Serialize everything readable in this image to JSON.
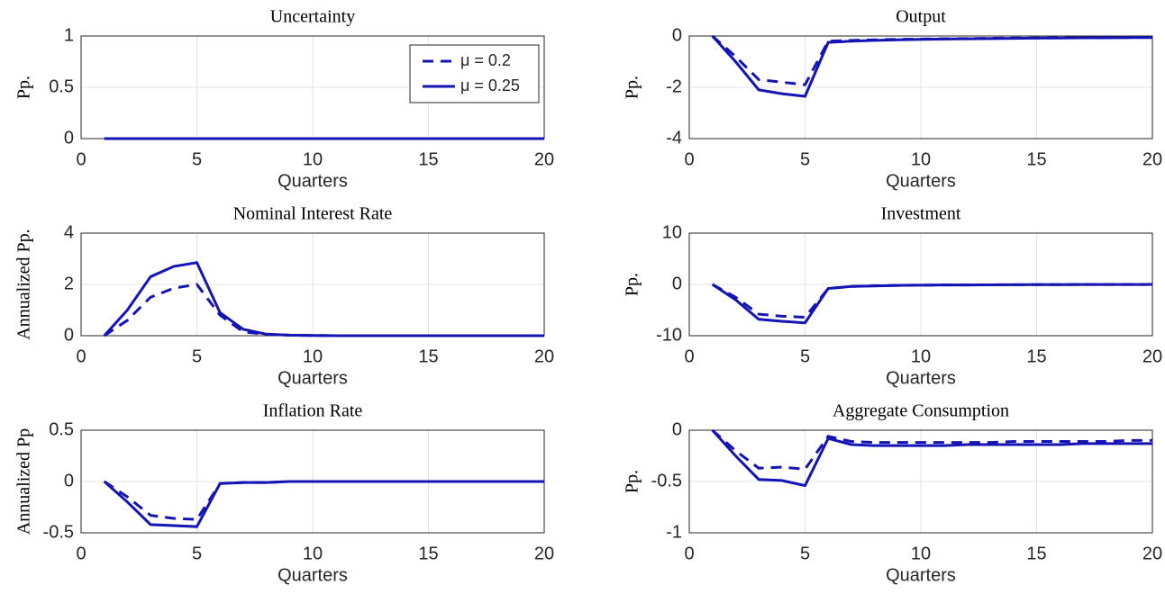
{
  "chart_data": [
    {
      "type": "line",
      "title": "Uncertainty",
      "xlabel": "Quarters",
      "ylabel": "Pp.",
      "x": [
        1,
        2,
        3,
        4,
        5,
        6,
        7,
        8,
        9,
        10,
        11,
        12,
        13,
        14,
        15,
        16,
        17,
        18,
        19,
        20
      ],
      "series": [
        {
          "name": "μ = 0.2",
          "color": "#1414b4",
          "line_style": "dashed",
          "values": [
            0,
            0,
            0,
            0,
            0,
            0,
            0,
            0,
            0,
            0,
            0,
            0,
            0,
            0,
            0,
            0,
            0,
            0,
            0,
            0
          ]
        },
        {
          "name": "μ = 0.25",
          "color": "#1414b4",
          "line_style": "solid",
          "values": [
            0,
            0,
            0,
            0,
            0,
            0,
            0,
            0,
            0,
            0,
            0,
            0,
            0,
            0,
            0,
            0,
            0,
            0,
            0,
            0
          ]
        }
      ],
      "xlim": [
        0,
        20
      ],
      "xticks": [
        0,
        5,
        10,
        15,
        20
      ],
      "ylim": [
        0,
        1
      ],
      "yticks": [
        0,
        0.5,
        1
      ],
      "grid": true,
      "legend": "northeast"
    },
    {
      "type": "line",
      "title": "Output",
      "xlabel": "Quarters",
      "ylabel": "Pp.",
      "x": [
        1,
        2,
        3,
        4,
        5,
        6,
        7,
        8,
        9,
        10,
        11,
        12,
        13,
        14,
        15,
        16,
        17,
        18,
        19,
        20
      ],
      "series": [
        {
          "color": "#1414b4",
          "line_style": "dashed",
          "values": [
            0,
            -0.8,
            -1.7,
            -1.8,
            -1.9,
            -0.2,
            -0.17,
            -0.15,
            -0.13,
            -0.12,
            -0.11,
            -0.1,
            -0.09,
            -0.08,
            -0.08,
            -0.07,
            -0.07,
            -0.06,
            -0.06,
            -0.05
          ]
        },
        {
          "color": "#1414b4",
          "line_style": "solid",
          "values": [
            0,
            -1.0,
            -2.1,
            -2.25,
            -2.35,
            -0.25,
            -0.2,
            -0.17,
            -0.15,
            -0.13,
            -0.12,
            -0.11,
            -0.1,
            -0.09,
            -0.08,
            -0.08,
            -0.07,
            -0.07,
            -0.06,
            -0.06
          ]
        }
      ],
      "xlim": [
        0,
        20
      ],
      "xticks": [
        0,
        5,
        10,
        15,
        20
      ],
      "ylim": [
        -4,
        0
      ],
      "yticks": [
        -4,
        -2,
        0
      ],
      "grid": true
    },
    {
      "type": "line",
      "title": "Nominal Interest Rate",
      "xlabel": "Quarters",
      "ylabel": "Annualized Pp.",
      "x": [
        1,
        2,
        3,
        4,
        5,
        6,
        7,
        8,
        9,
        10,
        11,
        12,
        13,
        14,
        15,
        16,
        17,
        18,
        19,
        20
      ],
      "series": [
        {
          "color": "#1414b4",
          "line_style": "dashed",
          "values": [
            0,
            0.6,
            1.5,
            1.85,
            2.0,
            0.8,
            0.15,
            0.05,
            0.02,
            0.01,
            0,
            0,
            0,
            0,
            0,
            0,
            0,
            0,
            0,
            0
          ]
        },
        {
          "color": "#1414b4",
          "line_style": "solid",
          "values": [
            0,
            1.0,
            2.3,
            2.7,
            2.85,
            0.9,
            0.25,
            0.06,
            0.02,
            0.01,
            0,
            0,
            0,
            0,
            0,
            0,
            0,
            0,
            0,
            0
          ]
        }
      ],
      "xlim": [
        0,
        20
      ],
      "xticks": [
        0,
        5,
        10,
        15,
        20
      ],
      "ylim": [
        0,
        4
      ],
      "yticks": [
        0,
        2,
        4
      ],
      "grid": true
    },
    {
      "type": "line",
      "title": "Investment",
      "xlabel": "Quarters",
      "ylabel": "Pp.",
      "x": [
        1,
        2,
        3,
        4,
        5,
        6,
        7,
        8,
        9,
        10,
        11,
        12,
        13,
        14,
        15,
        16,
        17,
        18,
        19,
        20
      ],
      "series": [
        {
          "color": "#1414b4",
          "line_style": "dashed",
          "values": [
            0,
            -2.5,
            -5.8,
            -6.2,
            -6.4,
            -0.8,
            -0.4,
            -0.25,
            -0.2,
            -0.15,
            -0.12,
            -0.1,
            -0.08,
            -0.06,
            -0.05,
            -0.04,
            -0.03,
            -0.02,
            -0.02,
            -0.01
          ]
        },
        {
          "color": "#1414b4",
          "line_style": "solid",
          "values": [
            0,
            -3.0,
            -6.8,
            -7.2,
            -7.5,
            -0.8,
            -0.4,
            -0.3,
            -0.2,
            -0.15,
            -0.12,
            -0.1,
            -0.08,
            -0.06,
            -0.05,
            -0.04,
            -0.03,
            -0.02,
            -0.02,
            -0.01
          ]
        }
      ],
      "xlim": [
        0,
        20
      ],
      "xticks": [
        0,
        5,
        10,
        15,
        20
      ],
      "ylim": [
        -10,
        10
      ],
      "yticks": [
        -10,
        0,
        10
      ],
      "grid": true
    },
    {
      "type": "line",
      "title": "Inflation Rate",
      "xlabel": "Quarters",
      "ylabel": "Annualized Pp",
      "x": [
        1,
        2,
        3,
        4,
        5,
        6,
        7,
        8,
        9,
        10,
        11,
        12,
        13,
        14,
        15,
        16,
        17,
        18,
        19,
        20
      ],
      "series": [
        {
          "color": "#1414b4",
          "line_style": "dashed",
          "values": [
            0,
            -0.15,
            -0.33,
            -0.36,
            -0.37,
            -0.02,
            -0.01,
            -0.01,
            0,
            0,
            0,
            0,
            0,
            0,
            0,
            0,
            0,
            0,
            0,
            0
          ]
        },
        {
          "color": "#1414b4",
          "line_style": "solid",
          "values": [
            0,
            -0.2,
            -0.42,
            -0.43,
            -0.44,
            -0.02,
            -0.01,
            -0.01,
            0,
            0,
            0,
            0,
            0,
            0,
            0,
            0,
            0,
            0,
            0,
            0
          ]
        }
      ],
      "xlim": [
        0,
        20
      ],
      "xticks": [
        0,
        5,
        10,
        15,
        20
      ],
      "ylim": [
        -0.5,
        0.5
      ],
      "yticks": [
        -0.5,
        0,
        0.5
      ],
      "grid": true
    },
    {
      "type": "line",
      "title": "Aggregate Consumption",
      "xlabel": "Quarters",
      "ylabel": "Pp.",
      "x": [
        1,
        2,
        3,
        4,
        5,
        6,
        7,
        8,
        9,
        10,
        11,
        12,
        13,
        14,
        15,
        16,
        17,
        18,
        19,
        20
      ],
      "series": [
        {
          "color": "#1414b4",
          "line_style": "dashed",
          "values": [
            0,
            -0.2,
            -0.37,
            -0.36,
            -0.38,
            -0.06,
            -0.11,
            -0.12,
            -0.12,
            -0.12,
            -0.12,
            -0.12,
            -0.12,
            -0.11,
            -0.11,
            -0.11,
            -0.11,
            -0.11,
            -0.1,
            -0.1
          ]
        },
        {
          "color": "#1414b4",
          "line_style": "solid",
          "values": [
            0,
            -0.25,
            -0.48,
            -0.49,
            -0.54,
            -0.08,
            -0.14,
            -0.15,
            -0.15,
            -0.15,
            -0.15,
            -0.14,
            -0.14,
            -0.14,
            -0.14,
            -0.14,
            -0.13,
            -0.13,
            -0.13,
            -0.13
          ]
        }
      ],
      "xlim": [
        0,
        20
      ],
      "xticks": [
        0,
        5,
        10,
        15,
        20
      ],
      "ylim": [
        -1,
        0
      ],
      "yticks": [
        -1,
        -0.5,
        0
      ],
      "grid": true
    }
  ]
}
